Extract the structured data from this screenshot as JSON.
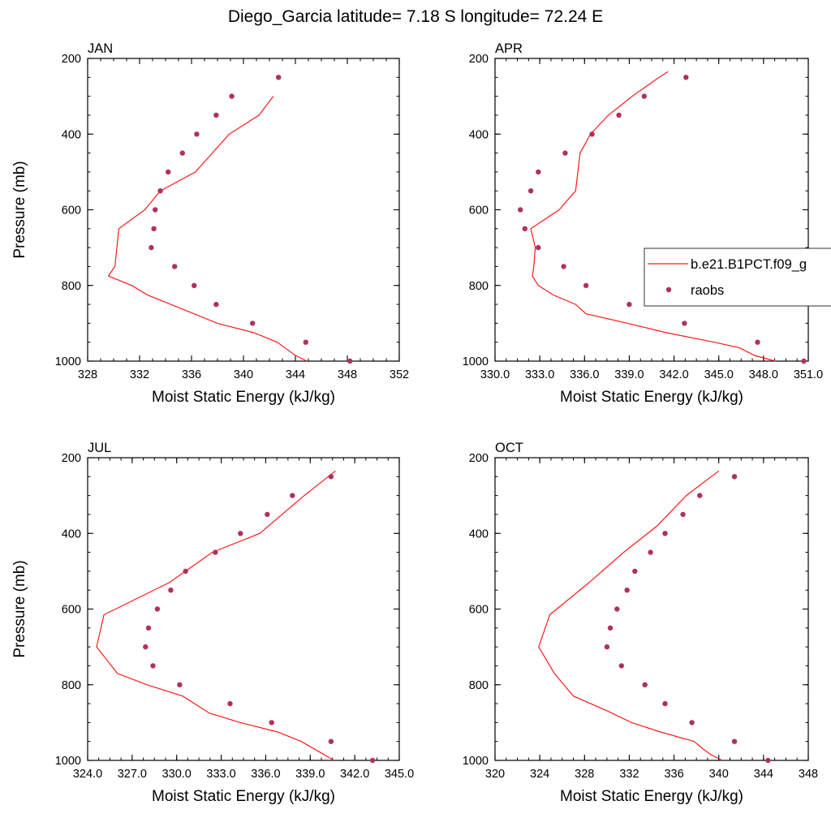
{
  "figure": {
    "title": "Diego_Garcia  latitude= 7.18 S longitude= 72.24 E",
    "legend": {
      "model_label": "b.e21.B1PCT.f09_g",
      "obs_label": "raobs"
    },
    "colors": {
      "model_line": "#ff1a1a",
      "obs_marker": "#b03060",
      "axis": "#000000"
    }
  },
  "chart_data": [
    {
      "type": "line",
      "panel": "JAN",
      "title": "JAN",
      "xlabel": "Moist Static Energy (kJ/kg)",
      "ylabel": "Pressure (mb)",
      "xlim": [
        328,
        352
      ],
      "ylim": [
        1000,
        200
      ],
      "y_reversed": true,
      "xticks": [
        328,
        332,
        336,
        340,
        344,
        348,
        352
      ],
      "xtick_labels": [
        "328",
        "332",
        "336",
        "340",
        "344",
        "348",
        "352"
      ],
      "yticks": [
        200,
        400,
        600,
        800,
        1000
      ],
      "ytick_labels": [
        "200",
        "400",
        "600",
        "800",
        "1000"
      ],
      "series": [
        {
          "name": "b.e21.B1PCT.f09_g",
          "kind": "line",
          "x": [
            344.9,
            344.0,
            343.2,
            342.6,
            340.8,
            338.0,
            336.2,
            334.4,
            332.6,
            331.4,
            329.6,
            330.1,
            330.4,
            332.4,
            333.6,
            336.3,
            338.9,
            341.2,
            342.3
          ],
          "y": [
            1000,
            985,
            965,
            950,
            925,
            900,
            875,
            850,
            825,
            800,
            775,
            750,
            650,
            600,
            550,
            500,
            400,
            350,
            300
          ]
        },
        {
          "name": "raobs",
          "kind": "scatter",
          "x": [
            348.2,
            344.8,
            340.7,
            337.9,
            336.2,
            334.7,
            332.9,
            333.1,
            333.2,
            333.6,
            334.2,
            335.3,
            336.4,
            337.9,
            339.1,
            342.7
          ],
          "y": [
            1000,
            950,
            900,
            850,
            800,
            750,
            700,
            650,
            600,
            550,
            500,
            450,
            400,
            350,
            300,
            250
          ]
        }
      ]
    },
    {
      "type": "line",
      "panel": "APR",
      "title": "APR",
      "xlabel": "Moist Static Energy (kJ/kg)",
      "ylabel": "",
      "xlim": [
        330,
        351
      ],
      "ylim": [
        1000,
        200
      ],
      "y_reversed": true,
      "xticks": [
        330,
        333,
        336,
        339,
        342,
        345,
        348,
        351
      ],
      "xtick_labels": [
        "330.0",
        "333.0",
        "336.0",
        "339.0",
        "342.0",
        "345.0",
        "348.0",
        "351.0"
      ],
      "yticks": [
        200,
        400,
        600,
        800,
        1000
      ],
      "ytick_labels": [
        "200",
        "400",
        "600",
        "800",
        "1000"
      ],
      "series": [
        {
          "name": "b.e21.B1PCT.f09_g",
          "kind": "line",
          "x": [
            348.8,
            347.4,
            346.4,
            344.7,
            341.5,
            338.9,
            336.1,
            335.4,
            333.9,
            332.9,
            332.5,
            332.6,
            332.7,
            332.4,
            334.3,
            335.4,
            335.7,
            336.4,
            337.6,
            339.2,
            341.0,
            341.6
          ],
          "y": [
            1000,
            985,
            965,
            950,
            925,
            900,
            875,
            850,
            825,
            800,
            775,
            750,
            700,
            650,
            600,
            550,
            450,
            400,
            350,
            300,
            250,
            235
          ]
        },
        {
          "name": "raobs",
          "kind": "scatter",
          "x": [
            350.7,
            347.6,
            342.7,
            339.0,
            336.1,
            334.6,
            332.9,
            332.0,
            331.7,
            332.4,
            332.9,
            334.7,
            336.5,
            338.3,
            340.0,
            342.8
          ],
          "y": [
            1000,
            950,
            900,
            850,
            800,
            750,
            700,
            650,
            600,
            550,
            500,
            450,
            400,
            350,
            300,
            250
          ]
        }
      ]
    },
    {
      "type": "line",
      "panel": "JUL",
      "title": "JUL",
      "xlabel": "Moist Static Energy (kJ/kg)",
      "ylabel": "Pressure (mb)",
      "xlim": [
        324,
        345
      ],
      "ylim": [
        1000,
        200
      ],
      "y_reversed": true,
      "xticks": [
        324,
        327,
        330,
        333,
        336,
        339,
        342,
        345
      ],
      "xtick_labels": [
        "324.0",
        "327.0",
        "330.0",
        "333.0",
        "336.0",
        "339.0",
        "342.0",
        "345.0"
      ],
      "yticks": [
        200,
        400,
        600,
        800,
        1000
      ],
      "ytick_labels": [
        "200",
        "400",
        "600",
        "800",
        "1000"
      ],
      "series": [
        {
          "name": "b.e21.B1PCT.f09_g",
          "kind": "line",
          "x": [
            340.6,
            339.5,
            338.4,
            336.8,
            334.3,
            332.2,
            330.4,
            328.0,
            326.0,
            324.6,
            325.1,
            329.5,
            332.4,
            335.6,
            338.6,
            340.7
          ],
          "y": [
            1000,
            975,
            950,
            925,
            900,
            875,
            830,
            800,
            770,
            700,
            615,
            530,
            450,
            400,
            300,
            235
          ]
        },
        {
          "name": "raobs",
          "kind": "scatter",
          "x": [
            343.2,
            340.4,
            336.4,
            333.6,
            330.2,
            328.4,
            327.9,
            328.1,
            328.7,
            329.6,
            330.6,
            332.6,
            334.3,
            336.1,
            337.8,
            340.4
          ],
          "y": [
            1000,
            950,
            900,
            850,
            800,
            750,
            700,
            650,
            600,
            550,
            500,
            450,
            400,
            350,
            300,
            250
          ]
        }
      ]
    },
    {
      "type": "line",
      "panel": "OCT",
      "title": "OCT",
      "xlabel": "Moist Static Energy (kJ/kg)",
      "ylabel": "",
      "xlim": [
        320,
        348
      ],
      "ylim": [
        1000,
        200
      ],
      "y_reversed": true,
      "xticks": [
        320,
        324,
        328,
        332,
        336,
        340,
        344,
        348
      ],
      "xtick_labels": [
        "320",
        "324",
        "328",
        "332",
        "336",
        "340",
        "344",
        "348"
      ],
      "yticks": [
        200,
        400,
        600,
        800,
        1000
      ],
      "ytick_labels": [
        "200",
        "400",
        "600",
        "800",
        "1000"
      ],
      "series": [
        {
          "name": "b.e21.B1PCT.f09_g",
          "kind": "line",
          "x": [
            340.3,
            339.3,
            338.6,
            337.8,
            334.8,
            332.2,
            330.1,
            327.0,
            325.3,
            323.9,
            324.9,
            328.4,
            331.5,
            334.5,
            337.1,
            340.0
          ],
          "y": [
            1000,
            985,
            970,
            950,
            925,
            900,
            870,
            830,
            770,
            700,
            615,
            530,
            450,
            380,
            300,
            235
          ]
        },
        {
          "name": "raobs",
          "kind": "scatter",
          "x": [
            344.4,
            341.4,
            337.6,
            335.2,
            333.4,
            331.3,
            330.0,
            330.3,
            330.9,
            331.8,
            332.5,
            333.9,
            335.2,
            336.8,
            338.3,
            341.4
          ],
          "y": [
            1000,
            950,
            900,
            850,
            800,
            750,
            700,
            650,
            600,
            550,
            500,
            450,
            400,
            350,
            300,
            250
          ]
        }
      ]
    }
  ]
}
